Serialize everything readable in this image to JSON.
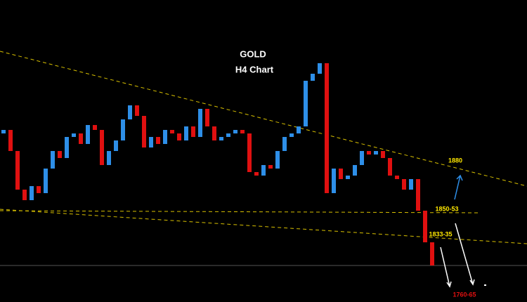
{
  "chart_data": {
    "type": "candlestick",
    "title": "GOLD",
    "subtitle": "H4 Chart",
    "ylim": [
      1785,
      2000
    ],
    "up_color": "#2e8fe8",
    "down_color": "#e01010",
    "open": [
      1905,
      1907.5,
      1892.5,
      1865,
      1857.5,
      1867.5,
      1862.5,
      1880,
      1892.5,
      1887.5,
      1902.5,
      1905,
      1897.5,
      1911,
      1907.5,
      1882.5,
      1892.5,
      1900,
      1915,
      1925,
      1917.5,
      1895,
      1902.5,
      1897.5,
      1907.5,
      1905,
      1900,
      1910,
      1902.5,
      1922.5,
      1910,
      1900,
      1902.5,
      1905,
      1907.5,
      1905,
      1877.5,
      1875,
      1882.5,
      1880,
      1892.5,
      1902.5,
      1905,
      1910,
      1942.5,
      1947.5,
      1955,
      1862.5,
      1880,
      1872.5,
      1875,
      1882.5,
      1892.5,
      1890,
      1892.5,
      1887.5,
      1875,
      1872.5,
      1865,
      1872.5,
      1850,
      1827.5
    ],
    "close": [
      1907.5,
      1892.5,
      1865,
      1857.5,
      1867.5,
      1862.5,
      1880,
      1892.5,
      1887.5,
      1902.5,
      1905,
      1897.5,
      1911,
      1907.5,
      1882.5,
      1892.5,
      1900,
      1915,
      1925,
      1917.5,
      1895,
      1902.5,
      1897.5,
      1907.5,
      1905,
      1900,
      1910,
      1902.5,
      1922.5,
      1910,
      1900,
      1902.5,
      1905,
      1907.5,
      1905,
      1877.5,
      1875,
      1882.5,
      1880,
      1892.5,
      1902.5,
      1905,
      1910,
      1942.5,
      1947.5,
      1955,
      1862.5,
      1880,
      1872.5,
      1875,
      1882.5,
      1892.5,
      1890,
      1892.5,
      1887.5,
      1875,
      1872.5,
      1865,
      1872.5,
      1850,
      1827.5,
      1811
    ],
    "annotations": [
      "1880",
      "1850-53",
      "1833-35",
      "1760-65"
    ]
  }
}
